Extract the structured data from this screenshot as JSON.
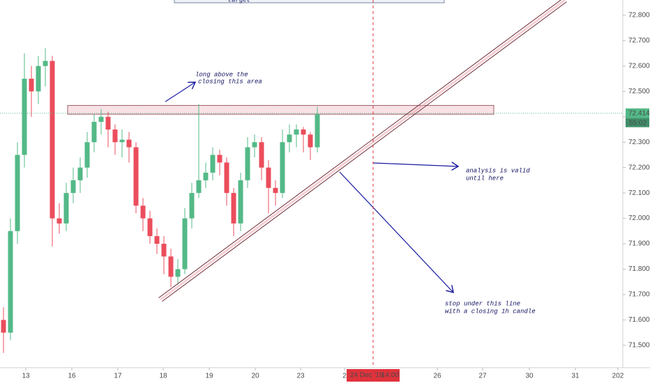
{
  "chart_data": {
    "type": "candlestick",
    "x": [
      0.5,
      1.5,
      2.5,
      3.5,
      4.5,
      5.5,
      6.5,
      7.5,
      8.5,
      9.5,
      10.5,
      11.5,
      12.5,
      13.5,
      14.5,
      15.5,
      16.5,
      17.5,
      18.5,
      19.5,
      20.5,
      21.5,
      22.5,
      23.5,
      24.5,
      25.5,
      26.5,
      27.5,
      28.5,
      29.5,
      30.5,
      31.5,
      32.5,
      33.5,
      34.5,
      35.5,
      36.5,
      37.5,
      38.5,
      39.5,
      40.5,
      41.5,
      42.5,
      43.5,
      44.5,
      45.5
    ],
    "open": [
      71.6,
      71.55,
      71.95,
      72.25,
      72.55,
      72.5,
      72.6,
      72.62,
      72.0,
      71.98,
      72.1,
      72.15,
      72.2,
      72.3,
      72.38,
      72.4,
      72.35,
      72.3,
      72.31,
      72.28,
      72.05,
      72.0,
      71.93,
      71.9,
      71.85,
      71.77,
      71.8,
      72.0,
      72.1,
      72.15,
      72.18,
      72.25,
      72.22,
      72.1,
      71.98,
      72.15,
      72.28,
      72.3,
      72.2,
      72.12,
      72.1,
      72.3,
      72.33,
      72.35,
      72.33,
      72.28
    ],
    "high": [
      71.65,
      72.0,
      72.3,
      72.65,
      72.6,
      72.64,
      72.67,
      72.64,
      72.06,
      72.14,
      72.2,
      72.24,
      72.34,
      72.41,
      72.43,
      72.42,
      72.37,
      72.35,
      72.34,
      72.3,
      72.08,
      72.03,
      71.96,
      71.93,
      71.88,
      71.84,
      72.04,
      72.14,
      72.45,
      72.22,
      72.28,
      72.27,
      72.24,
      72.12,
      72.18,
      72.32,
      72.33,
      72.32,
      72.23,
      72.15,
      72.35,
      72.37,
      72.37,
      72.36,
      72.34,
      72.44
    ],
    "low": [
      71.47,
      71.52,
      71.9,
      72.2,
      72.4,
      72.45,
      72.52,
      71.89,
      71.94,
      71.95,
      72.06,
      72.1,
      72.16,
      72.26,
      72.33,
      72.28,
      72.25,
      72.24,
      72.22,
      72.02,
      71.95,
      71.9,
      71.86,
      71.78,
      71.73,
      71.74,
      71.78,
      71.96,
      72.08,
      72.12,
      72.15,
      72.17,
      72.05,
      71.93,
      71.95,
      72.12,
      72.24,
      72.15,
      72.02,
      72.05,
      72.08,
      72.26,
      72.28,
      72.26,
      72.23,
      72.26
    ],
    "close": [
      71.55,
      71.95,
      72.25,
      72.55,
      72.5,
      72.6,
      72.62,
      72.0,
      71.98,
      72.1,
      72.15,
      72.2,
      72.3,
      72.38,
      72.4,
      72.35,
      72.3,
      72.31,
      72.28,
      72.05,
      72.0,
      71.93,
      71.9,
      71.85,
      71.77,
      71.8,
      72.0,
      72.1,
      72.15,
      72.18,
      72.25,
      72.22,
      72.1,
      71.98,
      72.15,
      72.28,
      72.3,
      72.2,
      72.12,
      72.1,
      72.3,
      72.33,
      72.35,
      72.33,
      72.28,
      72.41
    ],
    "up_color": "#53b987",
    "down_color": "#eb4d5c",
    "xlim": [
      0,
      89.3
    ],
    "ylim": [
      71.412,
      72.86
    ],
    "xticks": [
      {
        "value": 3.7,
        "label": "13"
      },
      {
        "value": 10.3,
        "label": "16"
      },
      {
        "value": 16.9,
        "label": "17"
      },
      {
        "value": 23.4,
        "label": "18"
      },
      {
        "value": 30.0,
        "label": "19"
      },
      {
        "value": 36.6,
        "label": "20"
      },
      {
        "value": 43.1,
        "label": "23"
      },
      {
        "value": 49.4,
        "label": "2"
      },
      {
        "value": 62.7,
        "label": "26"
      },
      {
        "value": 69.2,
        "label": "27"
      },
      {
        "value": 75.9,
        "label": "30"
      },
      {
        "value": 82.5,
        "label": "31"
      },
      {
        "value": 88.6,
        "label": "202"
      }
    ],
    "yticks": [
      {
        "value": 72.8,
        "label": "72.800"
      },
      {
        "value": 72.7,
        "label": "72.700"
      },
      {
        "value": 72.6,
        "label": "72.600"
      },
      {
        "value": 72.5,
        "label": "72.500"
      },
      {
        "value": 72.4,
        "label": "72.400"
      },
      {
        "value": 72.3,
        "label": "72.300"
      },
      {
        "value": 72.2,
        "label": "72.200"
      },
      {
        "value": 72.1,
        "label": "72.100"
      },
      {
        "value": 72.0,
        "label": "72.000"
      },
      {
        "value": 71.9,
        "label": "71.900"
      },
      {
        "value": 71.8,
        "label": "71.800"
      },
      {
        "value": 71.7,
        "label": "71.700"
      },
      {
        "value": 71.6,
        "label": "71.600"
      },
      {
        "value": 71.5,
        "label": "71.500"
      }
    ],
    "last_price": {
      "value": 72.414,
      "label": "72.414"
    },
    "countdown": "55:02",
    "crosshair": {
      "x": 53.5,
      "date": "24 Dec '19",
      "time": "14:00"
    },
    "zone": {
      "x": [
        9.7,
        70.8
      ],
      "low": 72.41,
      "high": 72.445
    },
    "trendline": {
      "x": [
        23.0,
        81.0
      ],
      "y": [
        71.68,
        72.86
      ]
    },
    "target_label": "target",
    "annotations": [
      [
        "long above the",
        "closing this area"
      ],
      [
        "analysis is valid",
        "until here"
      ],
      [
        "stop under this line",
        "with a closing 1h candle"
      ]
    ]
  }
}
